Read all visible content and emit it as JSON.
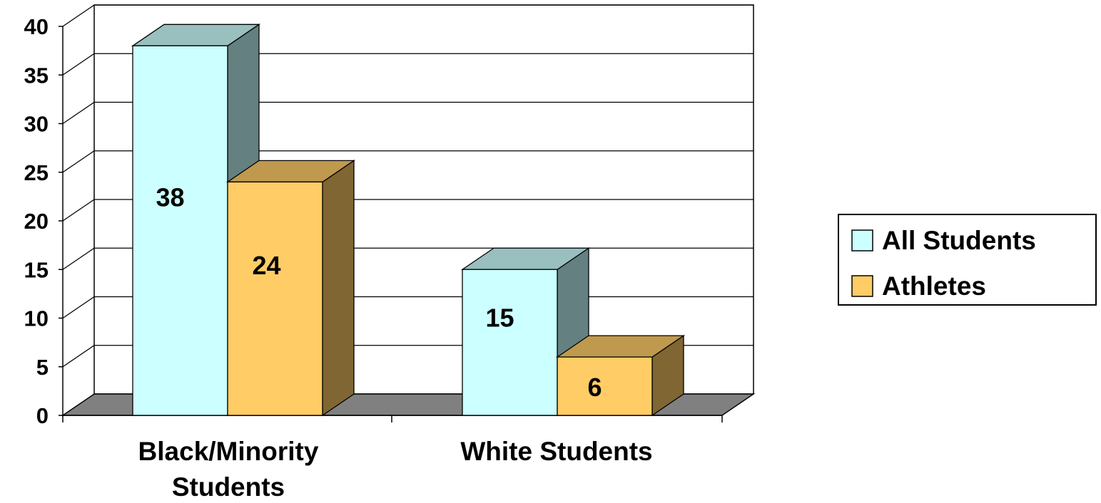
{
  "chart_data": {
    "type": "bar",
    "categories": [
      "Black/Minority Students",
      "White Students"
    ],
    "series": [
      {
        "name": "All Students",
        "values": [
          38,
          15
        ],
        "color": "#CCFFFF",
        "side_color": "#658080",
        "top_color": "#99BFBF"
      },
      {
        "name": "Athletes",
        "values": [
          24,
          6
        ],
        "color": "#FFCC66",
        "side_color": "#806633",
        "top_color": "#BF994D"
      }
    ],
    "data_labels": [
      "38",
      "24",
      "15",
      "6"
    ],
    "y_ticks": [
      "0",
      "5",
      "10",
      "15",
      "20",
      "25",
      "30",
      "35",
      "40"
    ],
    "ylim": [
      0,
      40
    ],
    "title": "",
    "xlabel": "",
    "ylabel": "",
    "grid": true,
    "legend_position": "right",
    "projection": "3d",
    "floor_color": "#808080"
  }
}
